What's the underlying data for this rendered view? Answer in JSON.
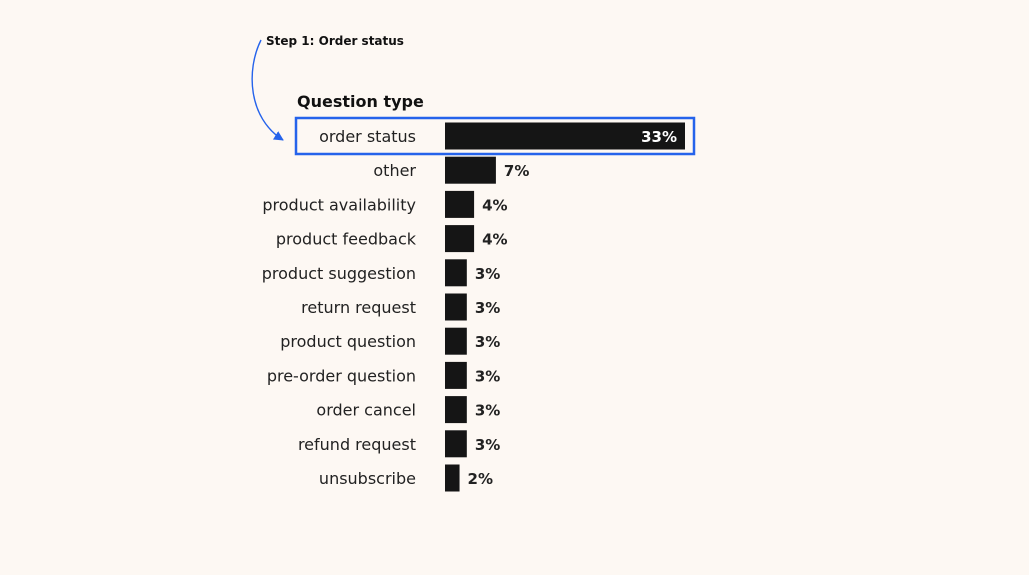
{
  "annotation": {
    "label": "Step 1: Order status",
    "highlighted_category": "order status"
  },
  "colors": {
    "background": "#fdf8f3",
    "bar": "#151515",
    "highlight": "#2563eb",
    "text": "#222222",
    "label_inside_bar": "#ffffff"
  },
  "chart_data": {
    "type": "bar",
    "orientation": "horizontal",
    "title": "Question type",
    "categories": [
      "order status",
      "other",
      "product availability",
      "product feedback",
      "product suggestion",
      "return request",
      "product question",
      "pre-order question",
      "order cancel",
      "refund request",
      "unsubscribe"
    ],
    "values": [
      33,
      7,
      4,
      4,
      3,
      3,
      3,
      3,
      3,
      3,
      2
    ],
    "value_labels": [
      "33%",
      "7%",
      "4%",
      "4%",
      "3%",
      "3%",
      "3%",
      "3%",
      "3%",
      "3%",
      "2%"
    ],
    "xlim": [
      0,
      33
    ],
    "grid": false,
    "legend": "none"
  }
}
